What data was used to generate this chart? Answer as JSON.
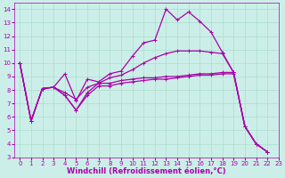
{
  "xlabel": "Windchill (Refroidissement éolien,°C)",
  "xlim": [
    -0.5,
    23
  ],
  "ylim": [
    3,
    14.5
  ],
  "yticks": [
    3,
    4,
    5,
    6,
    7,
    8,
    9,
    10,
    11,
    12,
    13,
    14
  ],
  "xticks": [
    0,
    1,
    2,
    3,
    4,
    5,
    6,
    7,
    8,
    9,
    10,
    11,
    12,
    13,
    14,
    15,
    16,
    17,
    18,
    19,
    20,
    21,
    22,
    23
  ],
  "bg_color": "#cceee8",
  "grid_color": "#aaddcc",
  "line_color": "#aa00aa",
  "lines": [
    {
      "x": [
        0,
        1,
        2,
        3,
        4,
        5,
        6,
        7,
        8,
        9,
        10,
        11,
        12,
        13,
        14,
        15,
        16,
        17,
        18,
        19,
        20,
        21,
        22,
        23
      ],
      "y": [
        10,
        5.7,
        8.1,
        8.2,
        9.2,
        7.2,
        8.8,
        8.6,
        9.2,
        9.4,
        10.5,
        11.5,
        11.7,
        14.0,
        13.2,
        13.8,
        13.1,
        12.3,
        10.8,
        9.3,
        5.3,
        4.0,
        3.4,
        null
      ]
    },
    {
      "x": [
        0,
        1,
        2,
        3,
        4,
        5,
        6,
        7,
        8,
        9,
        10,
        11,
        12,
        13,
        14,
        15,
        16,
        17,
        18,
        19,
        20,
        21,
        22,
        23
      ],
      "y": [
        10,
        5.7,
        8.1,
        8.2,
        7.8,
        7.3,
        8.2,
        8.5,
        8.9,
        9.1,
        9.5,
        10.0,
        10.4,
        10.7,
        10.9,
        10.9,
        10.9,
        10.8,
        10.7,
        9.3,
        5.3,
        4.0,
        3.4,
        null
      ]
    },
    {
      "x": [
        0,
        1,
        2,
        3,
        4,
        5,
        6,
        7,
        8,
        9,
        10,
        11,
        12,
        13,
        14,
        15,
        16,
        17,
        18,
        19,
        20,
        21,
        22,
        23
      ],
      "y": [
        10,
        5.7,
        8.1,
        8.2,
        7.6,
        6.5,
        7.8,
        8.5,
        8.5,
        8.7,
        8.8,
        8.9,
        8.9,
        9.0,
        9.0,
        9.1,
        9.2,
        9.2,
        9.3,
        9.3,
        5.3,
        4.0,
        3.4,
        null
      ]
    },
    {
      "x": [
        0,
        1,
        2,
        3,
        4,
        5,
        6,
        7,
        8,
        9,
        10,
        11,
        12,
        13,
        14,
        15,
        16,
        17,
        18,
        19,
        20,
        21,
        22,
        23
      ],
      "y": [
        10,
        5.7,
        8.1,
        8.2,
        7.6,
        6.5,
        7.6,
        8.3,
        8.3,
        8.5,
        8.6,
        8.7,
        8.8,
        8.8,
        8.9,
        9.0,
        9.1,
        9.1,
        9.2,
        9.2,
        5.3,
        4.0,
        3.4,
        null
      ]
    }
  ],
  "marker": "+",
  "marker_size": 3,
  "linewidth": 0.9,
  "tick_fontsize": 5,
  "label_fontsize": 6
}
